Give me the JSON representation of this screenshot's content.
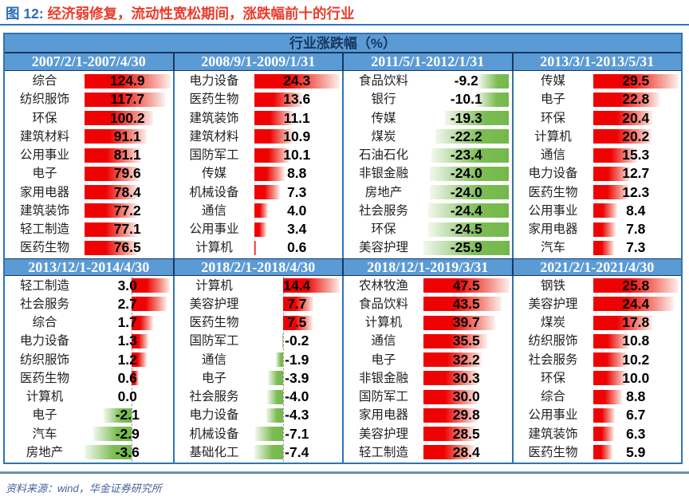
{
  "title": {
    "label": "图 12: ",
    "text": "经济弱修复，流动性宽松期间，涨跌幅前十的行业"
  },
  "table": {
    "header": "行业涨跌幅（%）"
  },
  "source": "资料来源：wind，华金证券研究所",
  "colors": {
    "header_bg": "#5b9bd5",
    "header_text": "#17375e",
    "date_text": "#ffffff",
    "border_blue": "#2e74b5",
    "border_navy": "#17375e",
    "positive_bar": "#ee0202",
    "negative_bar": "#74b84b",
    "title_label": "#2a6db6",
    "title_text": "#e93b2c",
    "source_text": "#44639e",
    "bottom_rule": "#35708f"
  },
  "chart_data": [
    {
      "type": "bar",
      "orientation": "horizontal",
      "title": "2007/2/1-2007/4/30",
      "categories": [
        "综合",
        "纺织服饰",
        "环保",
        "建筑材料",
        "公用事业",
        "电子",
        "家用电器",
        "建筑装饰",
        "轻工制造",
        "医药生物"
      ],
      "values": [
        124.9,
        117.7,
        100.2,
        91.1,
        81.1,
        79.6,
        78.4,
        77.2,
        77.1,
        76.5
      ]
    },
    {
      "type": "bar",
      "orientation": "horizontal",
      "title": "2008/9/1-2009/1/31",
      "categories": [
        "电力设备",
        "医药生物",
        "建筑装饰",
        "建筑材料",
        "国防军工",
        "传媒",
        "机械设备",
        "通信",
        "公用事业",
        "计算机"
      ],
      "values": [
        24.3,
        13.6,
        11.1,
        10.9,
        10.1,
        8.8,
        7.3,
        4.0,
        3.4,
        0.6
      ]
    },
    {
      "type": "bar",
      "orientation": "horizontal",
      "title": "2011/5/1-2012/1/31",
      "categories": [
        "食品饮料",
        "银行",
        "传媒",
        "煤炭",
        "石油石化",
        "非银金融",
        "房地产",
        "社会服务",
        "环保",
        "美容护理"
      ],
      "values": [
        -9.2,
        -10.1,
        -19.3,
        -22.2,
        -23.4,
        -24.0,
        -24.0,
        -24.4,
        -24.5,
        -25.9
      ]
    },
    {
      "type": "bar",
      "orientation": "horizontal",
      "title": "2013/3/1-2013/5/31",
      "categories": [
        "传媒",
        "电子",
        "环保",
        "计算机",
        "通信",
        "电力设备",
        "医药生物",
        "公用事业",
        "家用电器",
        "汽车"
      ],
      "values": [
        29.5,
        22.8,
        20.4,
        20.2,
        15.3,
        12.7,
        12.3,
        8.4,
        7.8,
        7.3
      ]
    },
    {
      "type": "bar",
      "orientation": "horizontal",
      "title": "2013/12/1-2014/4/30",
      "categories": [
        "轻工制造",
        "社会服务",
        "综合",
        "电力设备",
        "纺织服饰",
        "医药生物",
        "计算机",
        "电子",
        "汽车",
        "房地产"
      ],
      "values": [
        3.0,
        2.7,
        1.7,
        1.3,
        1.2,
        0.6,
        0.0,
        -2.1,
        -2.9,
        -3.6
      ]
    },
    {
      "type": "bar",
      "orientation": "horizontal",
      "title": "2018/2/1-2018/4/30",
      "categories": [
        "计算机",
        "美容护理",
        "医药生物",
        "国防军工",
        "通信",
        "电子",
        "社会服务",
        "电力设备",
        "机械设备",
        "基础化工"
      ],
      "values": [
        14.4,
        7.7,
        7.5,
        -0.2,
        -1.9,
        -3.9,
        -4.0,
        -4.3,
        -7.1,
        -7.4
      ]
    },
    {
      "type": "bar",
      "orientation": "horizontal",
      "title": "2018/12/1-2019/3/31",
      "categories": [
        "农林牧渔",
        "食品饮料",
        "计算机",
        "通信",
        "电子",
        "非银金融",
        "国防军工",
        "家用电器",
        "美容护理",
        "轻工制造"
      ],
      "values": [
        47.5,
        43.5,
        39.7,
        35.5,
        32.2,
        30.3,
        30.0,
        29.8,
        28.5,
        28.4
      ]
    },
    {
      "type": "bar",
      "orientation": "horizontal",
      "title": "2021/2/1-2021/4/30",
      "categories": [
        "钢铁",
        "美容护理",
        "煤炭",
        "纺织服饰",
        "社会服务",
        "环保",
        "综合",
        "公用事业",
        "建筑装饰",
        "医药生物"
      ],
      "values": [
        25.8,
        24.4,
        17.8,
        10.8,
        10.2,
        10.0,
        8.8,
        6.7,
        6.3,
        5.9
      ]
    }
  ]
}
